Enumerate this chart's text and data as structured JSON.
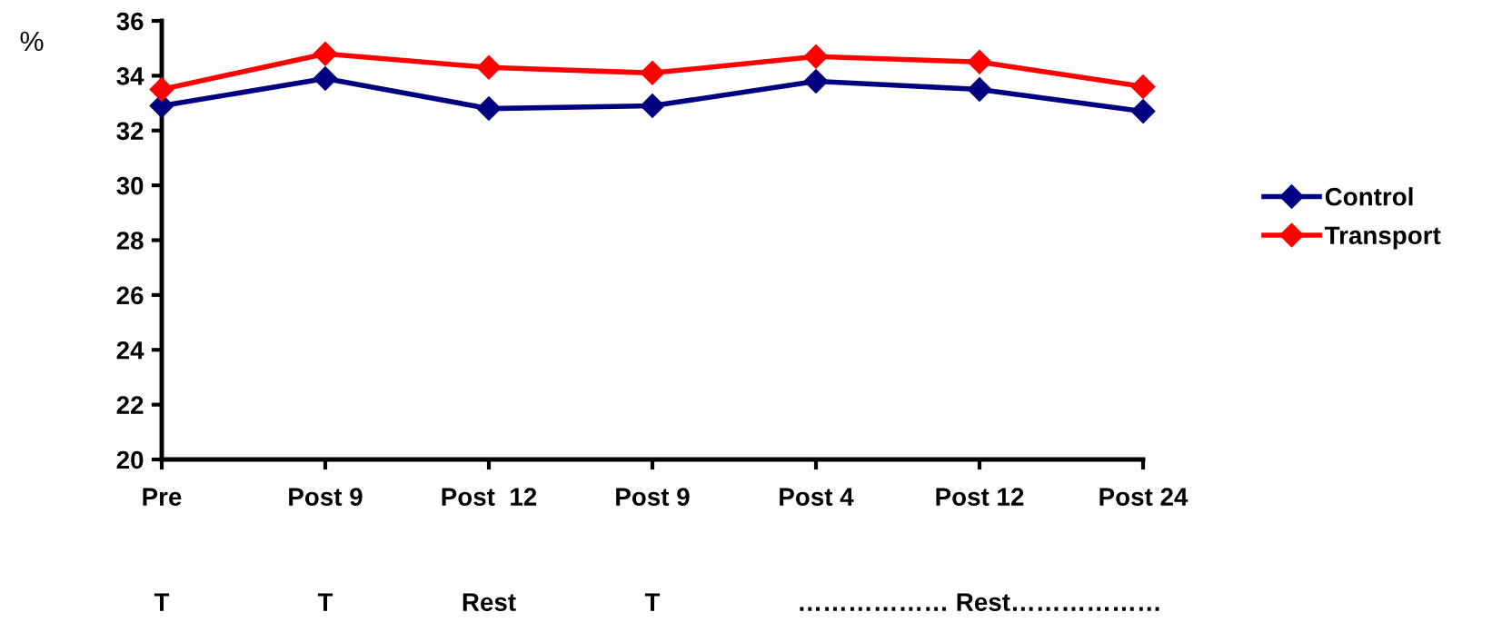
{
  "chart_data": {
    "type": "line",
    "ylabel": "%",
    "categories": [
      "Pre",
      "Post 9",
      "Post  12",
      "Post 9",
      "Post 4",
      "Post 12",
      "Post 24"
    ],
    "series": [
      {
        "name": "Control",
        "color": "#000080",
        "values": [
          32.9,
          33.9,
          32.8,
          32.9,
          33.8,
          33.5,
          32.7
        ]
      },
      {
        "name": "Transport",
        "color": "#ff0000",
        "values": [
          33.5,
          34.8,
          34.3,
          34.1,
          34.7,
          34.5,
          33.6
        ]
      }
    ],
    "ylim": [
      20,
      36
    ],
    "yticks": [
      20,
      22,
      24,
      26,
      28,
      30,
      32,
      34,
      36
    ],
    "grid": false,
    "legend": "right",
    "marker": "diamond",
    "line_style": "solid",
    "annotations": [
      "T",
      "T",
      "Rest",
      "T",
      "……………… Rest………………"
    ]
  }
}
